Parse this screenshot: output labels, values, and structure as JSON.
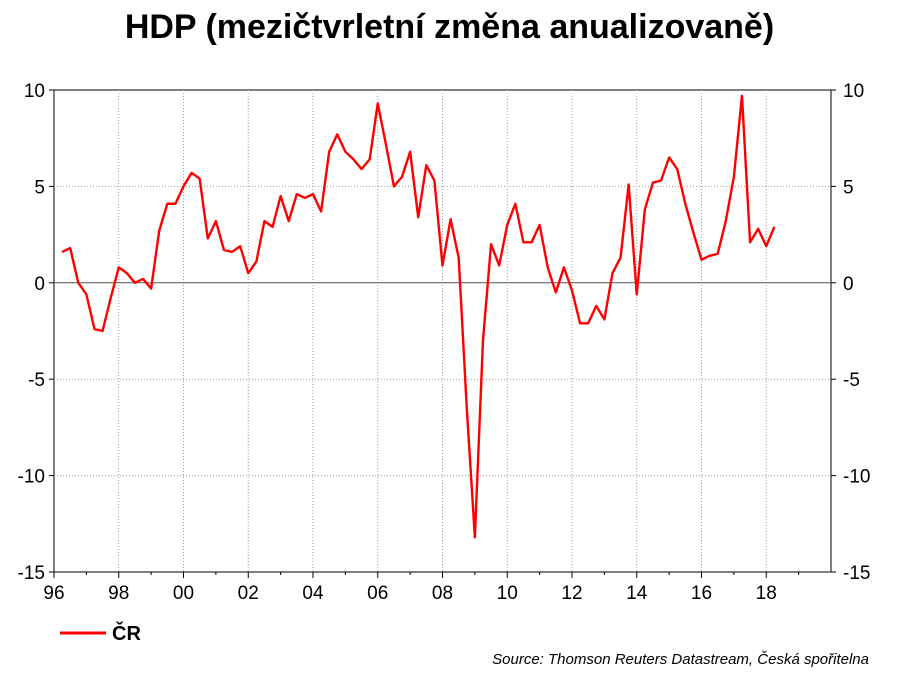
{
  "chart_data": {
    "type": "line",
    "title": "HDP (mezičtvrletní změna anualizovaně)",
    "ylim": [
      -15,
      10
    ],
    "yticks": [
      10,
      5,
      0,
      -5,
      -10,
      -15
    ],
    "ytick_labels": [
      "10",
      "5",
      "0",
      "-5",
      "-10",
      "-15"
    ],
    "xlim": [
      1996,
      2020
    ],
    "xticks": [
      1996,
      1998,
      2000,
      2002,
      2004,
      2006,
      2008,
      2010,
      2012,
      2014,
      2016,
      2018
    ],
    "xtick_labels": [
      "96",
      "98",
      "00",
      "02",
      "04",
      "06",
      "08",
      "10",
      "12",
      "14",
      "16",
      "18"
    ],
    "grid": true,
    "legend_position": "bottom-left",
    "colors": {
      "series": "#ff0000",
      "zero_line": "#555555",
      "grid": "#999999"
    },
    "series": [
      {
        "name": "ČR",
        "color": "#ff0000",
        "x": [
          1996.25,
          1996.5,
          1996.75,
          1997.0,
          1997.25,
          1997.5,
          1997.75,
          1998.0,
          1998.25,
          1998.5,
          1998.75,
          1999.0,
          1999.25,
          1999.5,
          1999.75,
          2000.0,
          2000.25,
          2000.5,
          2000.75,
          2001.0,
          2001.25,
          2001.5,
          2001.75,
          2002.0,
          2002.25,
          2002.5,
          2002.75,
          2003.0,
          2003.25,
          2003.5,
          2003.75,
          2004.0,
          2004.25,
          2004.5,
          2004.75,
          2005.0,
          2005.25,
          2005.5,
          2005.75,
          2006.0,
          2006.25,
          2006.5,
          2006.75,
          2007.0,
          2007.25,
          2007.5,
          2007.75,
          2008.0,
          2008.25,
          2008.5,
          2008.75,
          2009.0,
          2009.25,
          2009.5,
          2009.75,
          2010.0,
          2010.25,
          2010.5,
          2010.75,
          2011.0,
          2011.25,
          2011.5,
          2011.75,
          2012.0,
          2012.25,
          2012.5,
          2012.75,
          2013.0,
          2013.25,
          2013.5,
          2013.75,
          2014.0,
          2014.25,
          2014.5,
          2014.75,
          2015.0,
          2015.25,
          2015.5,
          2015.75,
          2016.0,
          2016.25,
          2016.5,
          2016.75,
          2017.0,
          2017.25,
          2017.5,
          2017.75,
          2018.0,
          2018.25
        ],
        "values": [
          1.6,
          1.8,
          0.0,
          -0.6,
          -2.4,
          -2.5,
          -0.8,
          0.8,
          0.5,
          0.0,
          0.2,
          -0.3,
          2.7,
          4.1,
          4.1,
          5.0,
          5.7,
          5.4,
          2.3,
          3.2,
          1.7,
          1.6,
          1.9,
          0.5,
          1.1,
          3.2,
          2.9,
          4.5,
          3.2,
          4.6,
          4.4,
          4.6,
          3.7,
          6.8,
          7.7,
          6.8,
          6.4,
          5.9,
          6.4,
          9.3,
          7.2,
          5.0,
          5.5,
          6.8,
          3.4,
          6.1,
          5.3,
          0.9,
          3.3,
          1.3,
          -6.5,
          -13.2,
          -3.0,
          2.0,
          0.9,
          3.0,
          4.1,
          2.1,
          2.1,
          3.0,
          0.8,
          -0.5,
          0.8,
          -0.4,
          -2.1,
          -2.1,
          -1.2,
          -1.9,
          0.5,
          1.3,
          5.1,
          -0.6,
          3.8,
          5.2,
          5.3,
          6.5,
          5.9,
          4.1,
          2.6,
          1.2,
          1.4,
          1.5,
          3.2,
          5.5,
          9.7,
          2.1,
          2.8,
          1.9,
          2.9
        ]
      }
    ]
  },
  "source": "Source: Thomson Reuters Datastream, Česká spořitelna"
}
